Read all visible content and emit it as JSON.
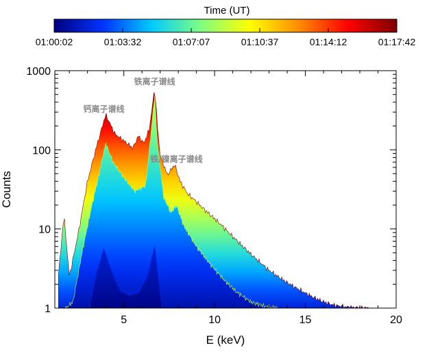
{
  "chart_data": {
    "type": "area",
    "colorbar": {
      "title": "Time (UT)",
      "tick_labels": [
        "01:00:02",
        "01:03:32",
        "01:07:07",
        "01:10:37",
        "01:14:12",
        "01:17:42"
      ],
      "colors": [
        "#00007f",
        "#0033ff",
        "#00ccff",
        "#7fff7f",
        "#ffff00",
        "#ff8c00",
        "#ff0000",
        "#7f0000"
      ]
    },
    "xlabel": "E (keV)",
    "ylabel": "Counts",
    "xlim": [
      1.2,
      20
    ],
    "ylim": [
      1,
      1000
    ],
    "yscale": "log",
    "x_ticks": [
      5,
      10,
      15,
      20
    ],
    "x_tick_labels": [
      "5",
      "10",
      "15",
      "20"
    ],
    "y_ticks": [
      1,
      10,
      100,
      1000
    ],
    "y_tick_labels": [
      "1",
      "10",
      "100",
      "1000"
    ],
    "annotations": [
      {
        "text": "钙离子谱线",
        "x": 3.9,
        "y": 280
      },
      {
        "text": "铁离子谱线",
        "x": 6.7,
        "y": 620
      },
      {
        "text": "铁/镍离子谱线",
        "x": 7.9,
        "y": 65
      }
    ],
    "series": [
      {
        "time_index": 1,
        "x": [
          1.4,
          1.7,
          2.0,
          2.5,
          3.0,
          3.5,
          4.0,
          4.5,
          5.0,
          5.5,
          5.8,
          6.1,
          6.4,
          6.55,
          6.7,
          6.85,
          7.0,
          7.4,
          7.8,
          8.1,
          8.5,
          9.0,
          9.5,
          10.0,
          10.5,
          11.0,
          11.5,
          12.0,
          12.5,
          13.0,
          13.5,
          14.0,
          14.5,
          15.0,
          15.5,
          16.0,
          16.5,
          17.0,
          17.5,
          18.0,
          18.5
        ],
        "y": [
          2.6,
          15,
          2.5,
          9,
          40,
          110,
          280,
          160,
          130,
          105,
          150,
          120,
          180,
          320,
          620,
          200,
          85,
          48,
          65,
          40,
          28,
          22,
          17,
          13.5,
          10.5,
          8.0,
          6.2,
          4.8,
          3.8,
          3.0,
          2.5,
          2.1,
          1.8,
          1.55,
          1.35,
          1.2,
          1.1,
          1.05,
          1.02,
          1.0,
          1.0
        ]
      },
      {
        "time_index": 0.5,
        "x": [
          1.8,
          2.2,
          2.7,
          3.2,
          3.6,
          4.0,
          4.4,
          5.0,
          5.6,
          6.2,
          6.55,
          6.7,
          6.85,
          7.2,
          7.6,
          7.9,
          8.3,
          9.0,
          9.8,
          10.5,
          11.2,
          12.0,
          12.8,
          13.5
        ],
        "y": [
          1.0,
          1.2,
          5,
          18,
          45,
          120,
          70,
          45,
          30,
          35,
          220,
          500,
          120,
          25,
          16,
          20,
          11,
          6,
          3.5,
          2.3,
          1.6,
          1.2,
          1.05,
          1.0
        ]
      },
      {
        "time_index": 0.1,
        "x": [
          3.1,
          3.5,
          3.9,
          4.3,
          4.8,
          5.3,
          5.8,
          6.3,
          6.7,
          7.1
        ],
        "y": [
          1.0,
          2.8,
          5.5,
          3.0,
          1.7,
          1.5,
          1.6,
          2.5,
          6,
          1.0
        ]
      }
    ]
  }
}
